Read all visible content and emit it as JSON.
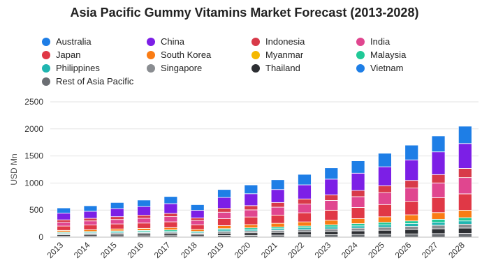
{
  "chart_data": {
    "type": "bar",
    "stacked": true,
    "title": "Asia Pacific Gummy Vitamins Market Forecast (2013-2028)",
    "xlabel": "",
    "ylabel": "USD Mn",
    "ylim": [
      0,
      2500
    ],
    "yticks": [
      0,
      500,
      1000,
      1500,
      2000,
      2500
    ],
    "grid": true,
    "legend_position": "top",
    "categories": [
      "2013",
      "2014",
      "2015",
      "2016",
      "2017",
      "2018",
      "2019",
      "2020",
      "2021",
      "2022",
      "2023",
      "2024",
      "2025",
      "2026",
      "2027",
      "2028"
    ],
    "series": [
      {
        "name": "Rest of Asia Pacific",
        "color": "#6b6e73",
        "values": [
          20,
          22,
          24,
          26,
          28,
          22,
          32,
          35,
          38,
          42,
          46,
          50,
          55,
          60,
          66,
          72
        ]
      },
      {
        "name": "Thailand",
        "color": "#2d2f33",
        "values": [
          25,
          27,
          30,
          32,
          35,
          28,
          42,
          46,
          50,
          54,
          60,
          66,
          72,
          80,
          88,
          96
        ]
      },
      {
        "name": "Vietnam",
        "color": "#1e7ee6",
        "values": [
          0,
          0,
          0,
          0,
          0,
          0,
          0,
          0,
          0,
          0,
          0,
          0,
          0,
          0,
          0,
          0
        ]
      },
      {
        "name": "Singapore",
        "color": "#8a8d91",
        "values": [
          20,
          22,
          24,
          26,
          28,
          22,
          32,
          35,
          38,
          42,
          46,
          50,
          55,
          60,
          66,
          72
        ]
      },
      {
        "name": "Philippines",
        "color": "#20b5b0",
        "values": [
          15,
          17,
          19,
          20,
          22,
          18,
          26,
          28,
          31,
          34,
          38,
          42,
          46,
          50,
          55,
          60
        ]
      },
      {
        "name": "Malaysia",
        "color": "#20c997",
        "values": [
          15,
          17,
          19,
          20,
          22,
          18,
          26,
          28,
          31,
          34,
          38,
          42,
          46,
          50,
          55,
          60
        ]
      },
      {
        "name": "Myanmar",
        "color": "#f5b800",
        "values": [
          0,
          0,
          0,
          0,
          0,
          0,
          0,
          0,
          0,
          0,
          0,
          0,
          0,
          0,
          0,
          0
        ]
      },
      {
        "name": "South Korea",
        "color": "#fa7c14",
        "values": [
          30,
          33,
          36,
          39,
          42,
          35,
          55,
          60,
          68,
          76,
          84,
          92,
          102,
          112,
          124,
          136
        ]
      },
      {
        "name": "Japan",
        "color": "#e03846",
        "values": [
          80,
          86,
          92,
          98,
          106,
          86,
          128,
          140,
          152,
          168,
          186,
          206,
          226,
          250,
          276,
          304
        ]
      },
      {
        "name": "India",
        "color": "#e0468f",
        "values": [
          70,
          76,
          82,
          88,
          96,
          78,
          120,
          132,
          146,
          162,
          180,
          200,
          222,
          246,
          272,
          300
        ]
      },
      {
        "name": "Indonesia",
        "color": "#d83a49",
        "values": [
          45,
          48,
          52,
          56,
          60,
          48,
          72,
          78,
          86,
          94,
          104,
          114,
          126,
          140,
          154,
          170
        ]
      },
      {
        "name": "China",
        "color": "#7c1fe6",
        "values": [
          125,
          130,
          150,
          160,
          180,
          140,
          200,
          220,
          240,
          260,
          290,
          320,
          350,
          380,
          420,
          460
        ]
      },
      {
        "name": "Australia",
        "color": "#1e7ee6",
        "values": [
          95,
          102,
          112,
          120,
          132,
          105,
          147,
          163,
          180,
          194,
          208,
          228,
          250,
          272,
          294,
          320
        ]
      }
    ]
  },
  "legend": {
    "items": [
      {
        "label": "Australia",
        "color": "#1e7ee6"
      },
      {
        "label": "China",
        "color": "#7c1fe6"
      },
      {
        "label": "Indonesia",
        "color": "#d83a49"
      },
      {
        "label": "India",
        "color": "#e0468f"
      },
      {
        "label": "Japan",
        "color": "#e03846"
      },
      {
        "label": "South Korea",
        "color": "#fa7c14"
      },
      {
        "label": "Myanmar",
        "color": "#f5b800"
      },
      {
        "label": "Malaysia",
        "color": "#20c997"
      },
      {
        "label": "Philippines",
        "color": "#20b5b0"
      },
      {
        "label": "Singapore",
        "color": "#8a8d91"
      },
      {
        "label": "Thailand",
        "color": "#2d2f33"
      },
      {
        "label": "Vietnam",
        "color": "#1e7ee6"
      },
      {
        "label": "Rest of Asia Pacific",
        "color": "#6b6e73"
      }
    ]
  }
}
